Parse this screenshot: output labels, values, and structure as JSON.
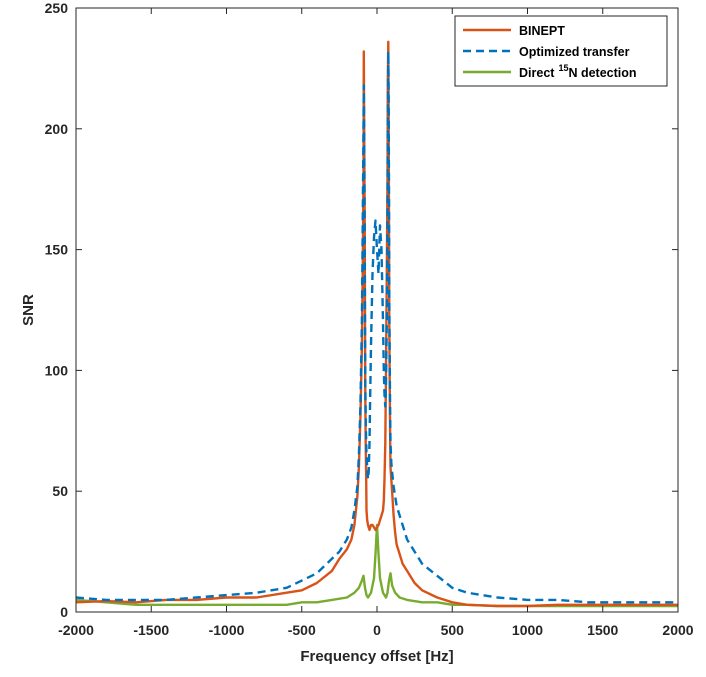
{
  "chart_data": {
    "type": "line",
    "xlabel": "Frequency offset [Hz]",
    "ylabel": "SNR",
    "xlim": [
      -2000,
      2000
    ],
    "ylim": [
      0,
      250
    ],
    "xticks": [
      -2000,
      -1500,
      -1000,
      -500,
      0,
      500,
      1000,
      1500,
      2000
    ],
    "yticks": [
      0,
      50,
      100,
      150,
      200,
      250
    ],
    "xtick_labels": [
      "-2000",
      "-1500",
      "-1000",
      "-500",
      "0",
      "500",
      "1000",
      "1500",
      "2000"
    ],
    "ytick_labels": [
      "0",
      "50",
      "100",
      "150",
      "200",
      "250"
    ],
    "grid": false,
    "box": true,
    "legend_position": "top-right",
    "series": [
      {
        "name": "BINEPT",
        "legend_label": "BINEPT",
        "color": "#D95319",
        "style": "solid",
        "x": [
          -2000,
          -1800,
          -1600,
          -1400,
          -1200,
          -1000,
          -800,
          -600,
          -500,
          -400,
          -300,
          -250,
          -200,
          -170,
          -150,
          -130,
          -120,
          -110,
          -100,
          -95,
          -90,
          -88,
          -85,
          -82,
          -80,
          -78,
          -75,
          -72,
          -70,
          -65,
          -60,
          -55,
          -50,
          -45,
          -40,
          -30,
          -20,
          -10,
          0,
          10,
          20,
          30,
          40,
          45,
          50,
          55,
          60,
          65,
          70,
          72,
          75,
          78,
          80,
          82,
          85,
          88,
          90,
          95,
          100,
          110,
          120,
          130,
          150,
          170,
          200,
          250,
          300,
          400,
          500,
          600,
          800,
          1000,
          1200,
          1400,
          1600,
          1800,
          2000
        ],
        "y": [
          4,
          4.5,
          4,
          5,
          5,
          6,
          6,
          8,
          9,
          12,
          17,
          22,
          26,
          30,
          36,
          48,
          60,
          80,
          110,
          140,
          180,
          232,
          200,
          160,
          120,
          90,
          70,
          55,
          42,
          38,
          36,
          35,
          34,
          35,
          36,
          36,
          35,
          34,
          35,
          36,
          38,
          40,
          42,
          46,
          55,
          70,
          100,
          140,
          180,
          220,
          236,
          200,
          160,
          120,
          90,
          70,
          60,
          55,
          50,
          40,
          33,
          28,
          24,
          20,
          17,
          12,
          9,
          6,
          4,
          3,
          2.5,
          2.5,
          3,
          3,
          3,
          3,
          3
        ]
      },
      {
        "name": "Optimized transfer",
        "legend_label": "Optimized transfer",
        "color": "#0072BD",
        "style": "dashed",
        "x": [
          -2000,
          -1800,
          -1600,
          -1400,
          -1200,
          -1000,
          -800,
          -600,
          -500,
          -400,
          -300,
          -250,
          -200,
          -170,
          -150,
          -130,
          -120,
          -110,
          -100,
          -95,
          -90,
          -88,
          -85,
          -82,
          -80,
          -78,
          -75,
          -72,
          -70,
          -65,
          -60,
          -55,
          -50,
          -45,
          -40,
          -30,
          -20,
          -10,
          0,
          10,
          20,
          30,
          40,
          45,
          50,
          55,
          60,
          65,
          70,
          72,
          75,
          78,
          80,
          82,
          85,
          88,
          90,
          95,
          100,
          110,
          120,
          130,
          150,
          170,
          200,
          250,
          300,
          400,
          500,
          600,
          800,
          1000,
          1200,
          1400,
          1600,
          1800,
          2000
        ],
        "y": [
          6,
          5,
          5,
          5,
          6,
          7,
          8,
          10,
          13,
          16,
          22,
          25,
          30,
          35,
          42,
          52,
          65,
          85,
          120,
          160,
          200,
          218,
          195,
          160,
          120,
          95,
          80,
          70,
          65,
          60,
          55,
          58,
          70,
          90,
          110,
          140,
          155,
          162,
          150,
          140,
          160,
          150,
          120,
          100,
          90,
          85,
          95,
          120,
          160,
          200,
          232,
          210,
          170,
          130,
          100,
          80,
          70,
          62,
          58,
          52,
          48,
          44,
          40,
          36,
          30,
          25,
          20,
          15,
          10,
          8,
          6,
          5,
          5,
          4,
          4,
          4,
          4
        ]
      },
      {
        "name": "Direct 15N detection",
        "legend_label": "Direct",
        "legend_sup": "15",
        "legend_rest": "N detection",
        "color": "#77AC30",
        "style": "solid",
        "x": [
          -2000,
          -1800,
          -1600,
          -1400,
          -1200,
          -1000,
          -800,
          -600,
          -500,
          -400,
          -300,
          -200,
          -150,
          -120,
          -100,
          -90,
          -80,
          -70,
          -60,
          -40,
          -20,
          -10,
          0,
          10,
          20,
          40,
          60,
          70,
          80,
          90,
          100,
          120,
          150,
          200,
          300,
          400,
          500,
          600,
          800,
          1000,
          1200,
          1400,
          1600,
          1800,
          2000
        ],
        "y": [
          5,
          4,
          3,
          3,
          3,
          3,
          3,
          3,
          4,
          4,
          5,
          6,
          8,
          10,
          13,
          15,
          10,
          7,
          6,
          8,
          14,
          24,
          36,
          24,
          14,
          8,
          6,
          8,
          13,
          16,
          11,
          8,
          6,
          5,
          4,
          4,
          3,
          3,
          2.5,
          2.5,
          2.5,
          2.5,
          2.5,
          2.5,
          2.5
        ]
      }
    ]
  }
}
